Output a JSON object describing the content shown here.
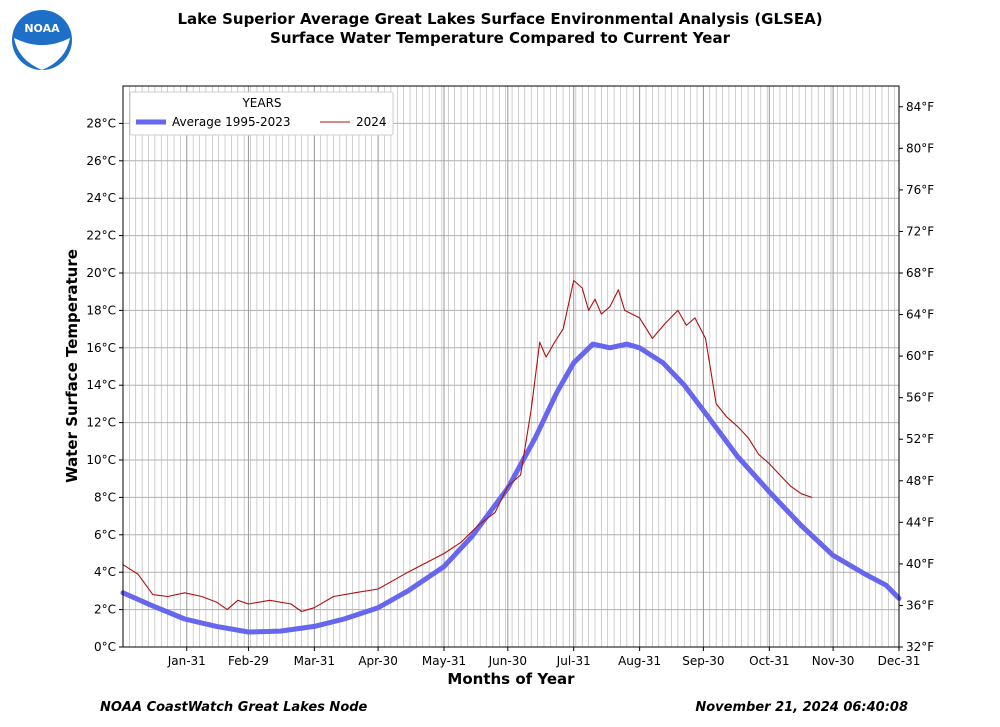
{
  "header": {
    "title_line1": "Lake Superior Average Great Lakes Surface Environmental Analysis (GLSEA)",
    "title_line2": "Surface Water Temperature Compared to Current Year",
    "logo_text": "NOAA"
  },
  "footer": {
    "left": "NOAA CoastWatch Great Lakes Node",
    "right": "November 21, 2024 06:40:08"
  },
  "colors": {
    "average": "#6666ee",
    "current": "#b01010",
    "grid": "#b0b0b0",
    "logo_blue": "#1d6fc7"
  },
  "chart_data": {
    "type": "line",
    "xlabel": "Months of Year",
    "ylabel": "Water Surface Temperature",
    "xlim": [
      1,
      366
    ],
    "ylim": [
      0,
      30
    ],
    "y2lim_F": [
      32,
      86
    ],
    "x_ticks": [
      {
        "day": 31,
        "label": "Jan-31"
      },
      {
        "day": 60,
        "label": "Feb-29"
      },
      {
        "day": 91,
        "label": "Mar-31"
      },
      {
        "day": 121,
        "label": "Apr-30"
      },
      {
        "day": 152,
        "label": "May-31"
      },
      {
        "day": 182,
        "label": "Jun-30"
      },
      {
        "day": 213,
        "label": "Jul-31"
      },
      {
        "day": 244,
        "label": "Aug-31"
      },
      {
        "day": 274,
        "label": "Sep-30"
      },
      {
        "day": 305,
        "label": "Oct-31"
      },
      {
        "day": 335,
        "label": "Nov-30"
      },
      {
        "day": 366,
        "label": "Dec-31"
      }
    ],
    "y_ticks_C": [
      0,
      2,
      4,
      6,
      8,
      10,
      12,
      14,
      16,
      18,
      20,
      22,
      24,
      26,
      28
    ],
    "y_tick_labels_C": [
      "0°C",
      "2°C",
      "4°C",
      "6°C",
      "8°C",
      "10°C",
      "12°C",
      "14°C",
      "16°C",
      "18°C",
      "20°C",
      "22°C",
      "24°C",
      "26°C",
      "28°C"
    ],
    "y_ticks_F": [
      32,
      36,
      40,
      44,
      48,
      52,
      56,
      60,
      64,
      68,
      72,
      76,
      80,
      84
    ],
    "y_tick_labels_F": [
      "32°F",
      "36°F",
      "40°F",
      "44°F",
      "48°F",
      "52°F",
      "56°F",
      "60°F",
      "64°F",
      "68°F",
      "72°F",
      "76°F",
      "80°F",
      "84°F"
    ],
    "grid": true,
    "legend": {
      "title": "YEARS",
      "placement": "top-left"
    },
    "series": [
      {
        "name": "Average 1995-2023",
        "x": [
          1,
          15,
          30,
          45,
          60,
          75,
          91,
          105,
          121,
          135,
          152,
          165,
          182,
          195,
          205,
          213,
          222,
          230,
          238,
          244,
          255,
          265,
          275,
          290,
          305,
          320,
          335,
          350,
          360,
          366
        ],
        "y": [
          2.9,
          2.2,
          1.5,
          1.1,
          0.8,
          0.85,
          1.1,
          1.5,
          2.1,
          3.0,
          4.3,
          5.9,
          8.5,
          11.2,
          13.6,
          15.2,
          16.2,
          16.0,
          16.2,
          16.0,
          15.2,
          14.0,
          12.5,
          10.2,
          8.3,
          6.5,
          4.9,
          3.9,
          3.3,
          2.6
        ]
      },
      {
        "name": "2024",
        "x": [
          1,
          8,
          15,
          22,
          30,
          38,
          45,
          50,
          55,
          60,
          70,
          80,
          85,
          91,
          100,
          110,
          121,
          135,
          152,
          160,
          168,
          176,
          182,
          188,
          193,
          197,
          200,
          204,
          208,
          213,
          217,
          220,
          223,
          226,
          230,
          234,
          237,
          244,
          250,
          256,
          262,
          266,
          270,
          275,
          280,
          285,
          290,
          295,
          300,
          305,
          310,
          315,
          320,
          325
        ],
        "y": [
          4.4,
          3.9,
          2.8,
          2.7,
          2.9,
          2.7,
          2.4,
          2.0,
          2.5,
          2.3,
          2.5,
          2.3,
          1.9,
          2.1,
          2.7,
          2.9,
          3.1,
          4.0,
          5.0,
          5.6,
          6.5,
          7.2,
          8.6,
          9.2,
          12.7,
          16.3,
          15.5,
          16.3,
          17.0,
          19.6,
          19.2,
          18.0,
          18.6,
          17.8,
          18.2,
          19.1,
          18.0,
          17.6,
          16.5,
          17.3,
          18.0,
          17.2,
          17.6,
          16.5,
          13.0,
          12.3,
          11.8,
          11.2,
          10.3,
          9.8,
          9.2,
          8.6,
          8.2,
          8.0
        ]
      }
    ]
  }
}
